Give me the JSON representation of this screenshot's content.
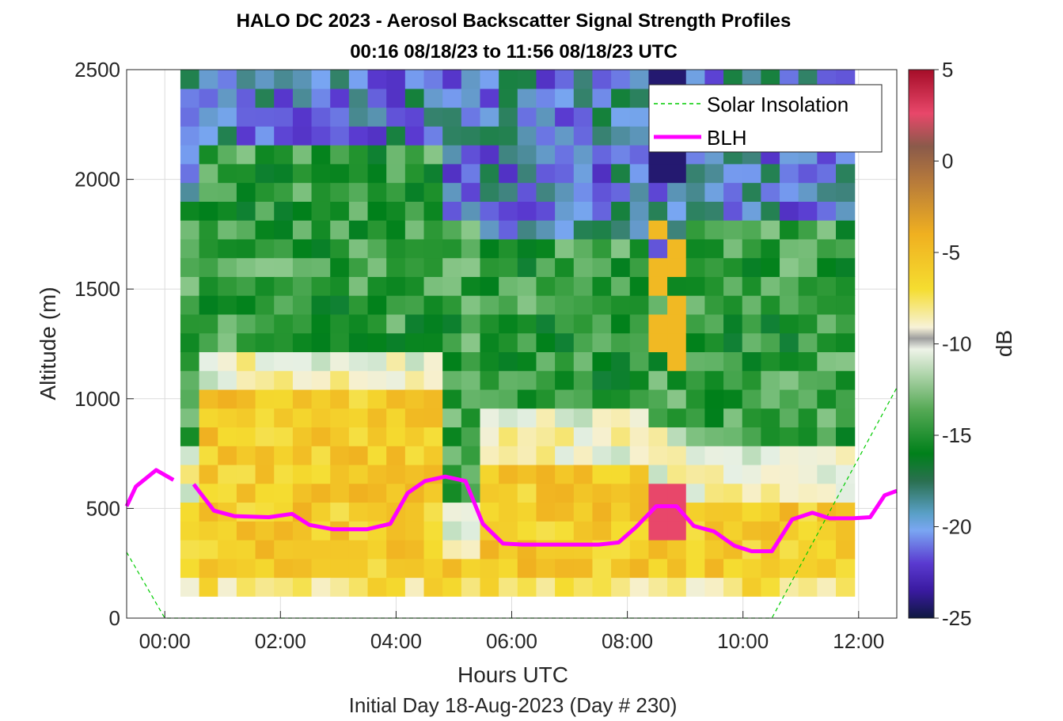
{
  "chart_data": {
    "type": "heatmap",
    "title_line1": "HALO DC 2023 - Aerosol Backscatter Signal Strength Profiles",
    "title_line2": "00:16 08/18/23 to 11:56 08/18/23  UTC",
    "xlabel": "Hours UTC",
    "ylabel": "Altitude (m)",
    "subtitle": "Initial Day 18-Aug-2023 (Day # 230)",
    "xlim": [
      -0.66,
      12.66
    ],
    "ylim": [
      0,
      2500
    ],
    "x_ticks": [
      0,
      2,
      4,
      6,
      8,
      10,
      12
    ],
    "x_tick_labels": [
      "00:00",
      "02:00",
      "04:00",
      "06:00",
      "08:00",
      "10:00",
      "12:00"
    ],
    "y_ticks": [
      0,
      500,
      1000,
      1500,
      2000,
      2500
    ],
    "y_tick_labels": [
      "0",
      "500",
      "1000",
      "1500",
      "2000",
      "2500"
    ],
    "grid": true,
    "colorbar": {
      "label": "dB",
      "range": [
        -25,
        5
      ],
      "ticks": [
        5,
        0,
        -5,
        -10,
        -15,
        -20,
        -25
      ],
      "tick_labels": [
        "5",
        "0",
        "-5",
        "-10",
        "-15",
        "-20",
        "-25"
      ]
    },
    "heatmap": {
      "t_start": 0.27,
      "t_end": 11.93,
      "z_bottom": 100,
      "z_top": 2500,
      "description_units": "dB",
      "regimes": [
        {
          "t0": 0.27,
          "t1": 0.6,
          "bl_top": 550,
          "mid_top": 1900
        },
        {
          "t0": 0.6,
          "t1": 4.8,
          "bl_top": 1000,
          "mid_top": 2200
        },
        {
          "t0": 4.8,
          "t1": 5.4,
          "bl_top": 300,
          "mid_top": 1800
        },
        {
          "t0": 5.4,
          "t1": 8.3,
          "bl_top": 700,
          "mid_top": 1700
        },
        {
          "t0": 8.3,
          "t1": 8.9,
          "bl_top": 600,
          "mid_top": 1650
        },
        {
          "t0": 8.9,
          "t1": 11.93,
          "bl_top": 550,
          "mid_top": 1850
        }
      ]
    },
    "series": [
      {
        "name": "Solar Insolation",
        "style": "dashed",
        "color": "#00cc00",
        "x": [
          -0.66,
          0.0,
          10.5,
          12.66
        ],
        "y": [
          300,
          0,
          0,
          1050
        ]
      },
      {
        "name": "BLH",
        "style": "solid",
        "color": "#ff00ff",
        "segments": [
          {
            "x": [
              -0.66,
              -0.5,
              -0.15,
              0.15
            ],
            "y": [
              510,
              600,
              675,
              630
            ]
          },
          {
            "x": [
              0.5,
              0.85,
              1.2,
              1.8,
              2.2,
              2.5,
              2.9,
              3.5,
              3.9,
              4.2,
              4.5,
              4.85,
              5.2,
              5.5,
              5.85,
              6.2,
              7.0,
              7.5,
              7.85,
              8.15,
              8.5,
              8.85,
              9.15,
              9.5,
              9.85,
              10.15,
              10.5,
              10.85,
              11.2,
              11.5,
              11.9,
              12.2,
              12.45,
              12.66
            ],
            "y": [
              610,
              490,
              465,
              460,
              475,
              425,
              405,
              405,
              430,
              570,
              625,
              645,
              625,
              430,
              340,
              335,
              335,
              335,
              345,
              415,
              510,
              510,
              420,
              395,
              330,
              305,
              305,
              450,
              480,
              455,
              455,
              460,
              560,
              580
            ]
          }
        ]
      }
    ],
    "legend": {
      "position": "top-right",
      "entries": [
        {
          "label": "Solar Insolation",
          "color": "#00cc00",
          "style": "dashed"
        },
        {
          "label": "BLH",
          "color": "#ff00ff",
          "style": "solid"
        }
      ]
    }
  }
}
